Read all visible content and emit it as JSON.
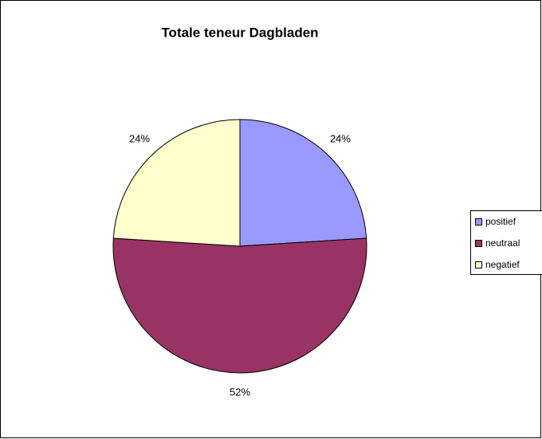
{
  "chart_data": {
    "type": "pie",
    "title": "Totale teneur Dagbladen",
    "categories": [
      "positief",
      "neutraal",
      "negatief"
    ],
    "values": [
      24,
      52,
      24
    ],
    "value_labels": [
      "24%",
      "52%",
      "24%"
    ],
    "colors": [
      "#9999ff",
      "#993366",
      "#ffffcc"
    ],
    "legend": "right"
  }
}
